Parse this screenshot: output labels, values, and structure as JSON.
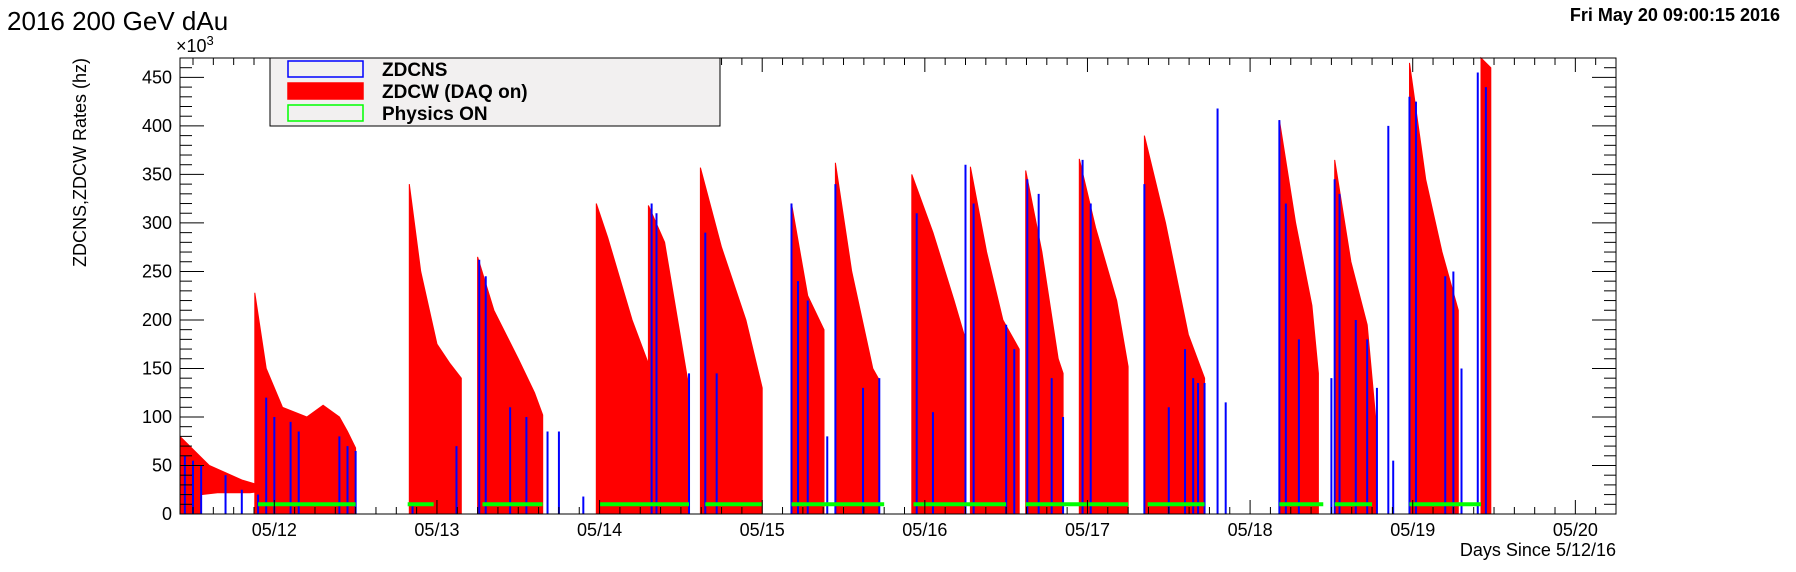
{
  "header": {
    "title": "2016 200 GeV dAu",
    "timestamp": "Fri May 20 09:00:15 2016"
  },
  "chart_data": {
    "type": "bar",
    "title": "2016 200 GeV dAu",
    "xlabel": "Days Since 5/12/16",
    "ylabel": "ZDCNS,ZDCW Rates (hz)",
    "y_multiplier_label": "×10",
    "y_multiplier_exp": "3",
    "xlim": [
      -0.58,
      8.25
    ],
    "ylim": [
      0,
      470
    ],
    "y_ticks": [
      0,
      50,
      100,
      150,
      200,
      250,
      300,
      350,
      400,
      450
    ],
    "x_ticks": [
      {
        "value": 0,
        "label": "05/12"
      },
      {
        "value": 1,
        "label": "05/13"
      },
      {
        "value": 2,
        "label": "05/14"
      },
      {
        "value": 3,
        "label": "05/15"
      },
      {
        "value": 4,
        "label": "05/16"
      },
      {
        "value": 5,
        "label": "05/17"
      },
      {
        "value": 6,
        "label": "05/18"
      },
      {
        "value": 7,
        "label": "05/19"
      },
      {
        "value": 8,
        "label": "05/20"
      }
    ],
    "grid": false,
    "legend_position": "top-left",
    "legend": [
      {
        "label": "ZDCNS",
        "color": "#0000ff"
      },
      {
        "label": "ZDCW (DAQ on)",
        "color": "#ff0000"
      },
      {
        "label": "Physics ON",
        "color": "#00ff00"
      }
    ],
    "series": [
      {
        "name": "ZDCW (DAQ on)",
        "color": "#ff0000",
        "fills": [
          {
            "points": [
              [
                -0.58,
                80
              ],
              [
                -0.4,
                50
              ],
              [
                -0.2,
                35
              ],
              [
                0.0,
                25
              ],
              [
                -0.15,
                22
              ],
              [
                -0.35,
                22
              ],
              [
                -0.45,
                20
              ]
            ]
          },
          {
            "points": [
              [
                -0.12,
                228
              ],
              [
                -0.05,
                150
              ],
              [
                0.05,
                110
              ],
              [
                0.2,
                100
              ],
              [
                0.3,
                112
              ],
              [
                0.4,
                100
              ],
              [
                0.45,
                85
              ],
              [
                0.5,
                68
              ]
            ]
          },
          {
            "points": [
              [
                0.83,
                340
              ],
              [
                0.9,
                250
              ],
              [
                1.0,
                175
              ],
              [
                1.08,
                155
              ],
              [
                1.15,
                140
              ]
            ]
          },
          {
            "points": [
              [
                1.25,
                265
              ],
              [
                1.35,
                210
              ],
              [
                1.5,
                160
              ],
              [
                1.6,
                125
              ],
              [
                1.65,
                102
              ]
            ]
          },
          {
            "points": [
              [
                1.98,
                320
              ],
              [
                2.05,
                285
              ],
              [
                2.2,
                200
              ],
              [
                2.3,
                155
              ],
              [
                2.35,
                120
              ]
            ]
          },
          {
            "points": [
              [
                2.3,
                318
              ],
              [
                2.4,
                280
              ],
              [
                2.5,
                180
              ],
              [
                2.55,
                130
              ]
            ]
          },
          {
            "points": [
              [
                2.62,
                357
              ],
              [
                2.75,
                275
              ],
              [
                2.9,
                200
              ],
              [
                3.0,
                130
              ]
            ]
          },
          {
            "points": [
              [
                3.18,
                320
              ],
              [
                3.28,
                225
              ],
              [
                3.38,
                190
              ]
            ]
          },
          {
            "points": [
              [
                3.45,
                362
              ],
              [
                3.55,
                250
              ],
              [
                3.68,
                150
              ],
              [
                3.72,
                138
              ]
            ]
          },
          {
            "points": [
              [
                3.92,
                350
              ],
              [
                4.05,
                290
              ],
              [
                4.18,
                220
              ],
              [
                4.25,
                180
              ]
            ]
          },
          {
            "points": [
              [
                4.28,
                358
              ],
              [
                4.38,
                270
              ],
              [
                4.48,
                200
              ],
              [
                4.58,
                170
              ]
            ]
          },
          {
            "points": [
              [
                4.62,
                354
              ],
              [
                4.72,
                270
              ],
              [
                4.82,
                160
              ],
              [
                4.85,
                145
              ]
            ]
          },
          {
            "points": [
              [
                4.95,
                366
              ],
              [
                5.05,
                295
              ],
              [
                5.18,
                220
              ],
              [
                5.25,
                152
              ]
            ]
          },
          {
            "points": [
              [
                5.35,
                390
              ],
              [
                5.48,
                300
              ],
              [
                5.62,
                185
              ],
              [
                5.72,
                140
              ]
            ]
          },
          {
            "points": [
              [
                6.18,
                406
              ],
              [
                6.28,
                300
              ],
              [
                6.38,
                215
              ],
              [
                6.42,
                145
              ]
            ]
          },
          {
            "points": [
              [
                6.52,
                365
              ],
              [
                6.62,
                260
              ],
              [
                6.72,
                195
              ],
              [
                6.78,
                85
              ]
            ]
          },
          {
            "points": [
              [
                6.98,
                465
              ],
              [
                7.08,
                345
              ],
              [
                7.18,
                270
              ],
              [
                7.28,
                210
              ]
            ]
          },
          {
            "points": [
              [
                7.42,
                470
              ],
              [
                7.48,
                460
              ]
            ]
          }
        ]
      },
      {
        "name": "ZDCNS",
        "color": "#0000ff",
        "spikes": [
          [
            -0.55,
            60
          ],
          [
            -0.5,
            55
          ],
          [
            -0.45,
            50
          ],
          [
            -0.3,
            40
          ],
          [
            -0.2,
            25
          ],
          [
            -0.1,
            20
          ],
          [
            -0.05,
            120
          ],
          [
            0.0,
            100
          ],
          [
            0.1,
            95
          ],
          [
            0.15,
            85
          ],
          [
            0.4,
            80
          ],
          [
            0.45,
            70
          ],
          [
            0.5,
            65
          ],
          [
            0.85,
            10
          ],
          [
            1.12,
            70
          ],
          [
            1.26,
            262
          ],
          [
            1.3,
            245
          ],
          [
            1.45,
            110
          ],
          [
            1.55,
            100
          ],
          [
            1.68,
            85
          ],
          [
            1.75,
            85
          ],
          [
            1.9,
            18
          ],
          [
            2.32,
            320
          ],
          [
            2.35,
            310
          ],
          [
            2.55,
            145
          ],
          [
            2.65,
            290
          ],
          [
            2.72,
            145
          ],
          [
            3.18,
            320
          ],
          [
            3.22,
            240
          ],
          [
            3.28,
            220
          ],
          [
            3.4,
            80
          ],
          [
            3.45,
            340
          ],
          [
            3.62,
            130
          ],
          [
            3.72,
            140
          ],
          [
            3.95,
            310
          ],
          [
            4.05,
            105
          ],
          [
            4.25,
            360
          ],
          [
            4.3,
            320
          ],
          [
            4.5,
            195
          ],
          [
            4.55,
            170
          ],
          [
            4.63,
            345
          ],
          [
            4.7,
            330
          ],
          [
            4.78,
            140
          ],
          [
            4.85,
            100
          ],
          [
            4.97,
            365
          ],
          [
            5.02,
            320
          ],
          [
            5.35,
            340
          ],
          [
            5.5,
            110
          ],
          [
            5.6,
            170
          ],
          [
            5.65,
            140
          ],
          [
            5.68,
            135
          ],
          [
            5.72,
            135
          ],
          [
            5.8,
            418
          ],
          [
            5.85,
            115
          ],
          [
            6.18,
            406
          ],
          [
            6.22,
            320
          ],
          [
            6.3,
            180
          ],
          [
            6.5,
            140
          ],
          [
            6.52,
            345
          ],
          [
            6.55,
            330
          ],
          [
            6.65,
            200
          ],
          [
            6.72,
            180
          ],
          [
            6.78,
            130
          ],
          [
            6.85,
            400
          ],
          [
            6.88,
            55
          ],
          [
            6.98,
            430
          ],
          [
            7.02,
            425
          ],
          [
            7.2,
            245
          ],
          [
            7.25,
            250
          ],
          [
            7.3,
            150
          ],
          [
            7.4,
            455
          ],
          [
            7.45,
            440
          ]
        ]
      },
      {
        "name": "Physics ON",
        "color": "#00ff00",
        "y": 10,
        "segments": [
          [
            -0.1,
            0.5
          ],
          [
            0.82,
            0.98
          ],
          [
            1.28,
            1.65
          ],
          [
            2.0,
            2.55
          ],
          [
            2.65,
            3.0
          ],
          [
            3.18,
            3.75
          ],
          [
            3.93,
            4.5
          ],
          [
            4.62,
            5.25
          ],
          [
            5.37,
            5.72
          ],
          [
            6.18,
            6.45
          ],
          [
            6.52,
            6.75
          ],
          [
            6.98,
            7.42
          ]
        ]
      }
    ]
  }
}
